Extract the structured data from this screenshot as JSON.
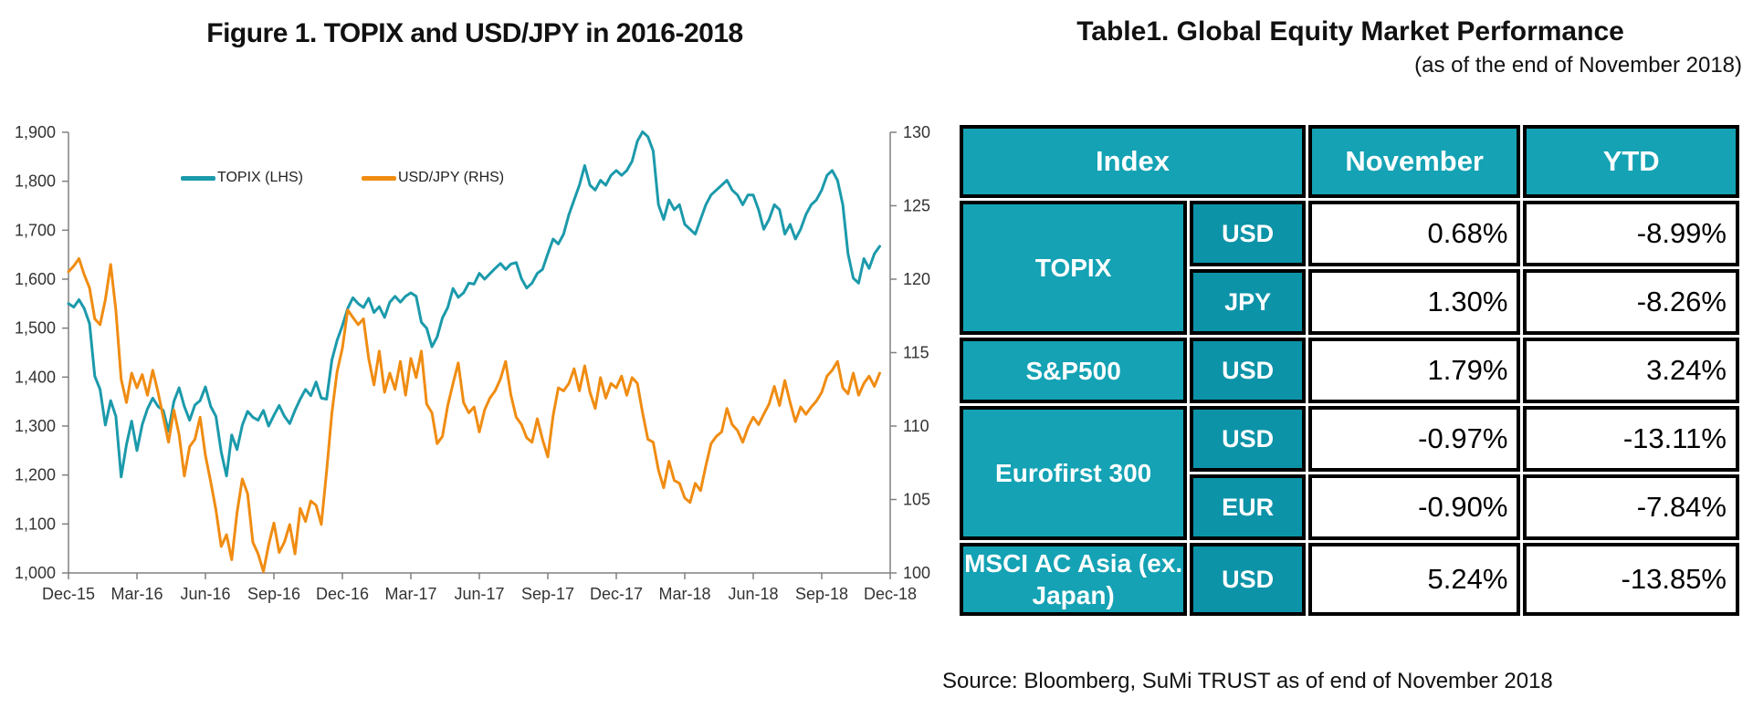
{
  "figure": {
    "title": "Figure 1. TOPIX and USD/JPY in 2016-2018"
  },
  "chart_data": {
    "type": "line",
    "title": "Figure 1. TOPIX and USD/JPY in 2016-2018",
    "grid": false,
    "legend_position": "top-center-inside",
    "x_unit": "weeks since start of Dec-2015",
    "x_tick_labels": [
      "Dec-15",
      "Mar-16",
      "Jun-16",
      "Sep-16",
      "Dec-16",
      "Mar-17",
      "Jun-17",
      "Sep-17",
      "Dec-17",
      "Mar-18",
      "Jun-18",
      "Sep-18",
      "Dec-18"
    ],
    "y_left": {
      "axis_for": "TOPIX",
      "min": 1000,
      "max": 1900,
      "ticks": [
        1000,
        1100,
        1200,
        1300,
        1400,
        1500,
        1600,
        1700,
        1800,
        1900
      ],
      "tick_labels": [
        "1,000",
        "1,100",
        "1,200",
        "1,300",
        "1,400",
        "1,500",
        "1,600",
        "1,700",
        "1,800",
        "1,900"
      ]
    },
    "y_right": {
      "axis_for": "USD/JPY",
      "min": 100,
      "max": 130,
      "ticks": [
        100,
        105,
        110,
        115,
        120,
        125,
        130
      ],
      "tick_labels": [
        "100",
        "105",
        "110",
        "115",
        "120",
        "125",
        "130"
      ]
    },
    "series": [
      {
        "name": "TOPIX (LHS)",
        "axis": "left",
        "color": "#1b9aab",
        "weekly_values": [
          1550,
          1543,
          1558,
          1540,
          1509,
          1402,
          1375,
          1302,
          1352,
          1320,
          1196,
          1262,
          1310,
          1250,
          1303,
          1335,
          1357,
          1340,
          1332,
          1289,
          1350,
          1378,
          1340,
          1312,
          1343,
          1352,
          1380,
          1340,
          1320,
          1247,
          1198,
          1282,
          1252,
          1302,
          1330,
          1318,
          1312,
          1332,
          1300,
          1322,
          1342,
          1320,
          1305,
          1332,
          1355,
          1375,
          1362,
          1390,
          1357,
          1355,
          1435,
          1475,
          1505,
          1540,
          1562,
          1550,
          1542,
          1561,
          1532,
          1544,
          1522,
          1553,
          1565,
          1553,
          1565,
          1572,
          1565,
          1512,
          1500,
          1462,
          1482,
          1521,
          1542,
          1581,
          1563,
          1572,
          1592,
          1590,
          1612,
          1600,
          1611,
          1622,
          1632,
          1620,
          1631,
          1634,
          1601,
          1582,
          1592,
          1612,
          1620,
          1652,
          1682,
          1672,
          1692,
          1732,
          1762,
          1792,
          1832,
          1792,
          1782,
          1802,
          1792,
          1812,
          1822,
          1812,
          1822,
          1841,
          1882,
          1901,
          1891,
          1862,
          1752,
          1722,
          1762,
          1742,
          1752,
          1712,
          1702,
          1692,
          1722,
          1752,
          1772,
          1782,
          1792,
          1802,
          1782,
          1772,
          1752,
          1772,
          1772,
          1742,
          1702,
          1722,
          1752,
          1742,
          1692,
          1712,
          1682,
          1702,
          1732,
          1752,
          1762,
          1782,
          1812,
          1822,
          1802,
          1752,
          1652,
          1602,
          1592,
          1642,
          1622,
          1652,
          1667
        ]
      },
      {
        "name": "USD/JPY (RHS)",
        "axis": "right",
        "color": "#f08c12",
        "weekly_values": [
          120.5,
          120.9,
          121.4,
          120.3,
          119.4,
          117.3,
          116.9,
          118.6,
          121.0,
          117.9,
          113.2,
          111.6,
          113.6,
          112.6,
          113.5,
          112.1,
          113.8,
          112.3,
          110.6,
          108.9,
          111.1,
          109.4,
          106.6,
          108.6,
          109.1,
          110.6,
          108.0,
          106.2,
          104.3,
          101.8,
          102.6,
          100.9,
          104.1,
          106.4,
          105.4,
          102.1,
          101.3,
          100.1,
          101.9,
          103.4,
          101.4,
          102.1,
          103.3,
          101.3,
          104.4,
          103.5,
          104.9,
          104.6,
          103.3,
          106.9,
          110.9,
          113.7,
          115.3,
          117.9,
          117.4,
          116.9,
          117.3,
          114.6,
          112.8,
          115.1,
          112.3,
          113.6,
          112.5,
          114.4,
          112.1,
          114.6,
          113.3,
          115.1,
          111.5,
          110.9,
          108.8,
          109.3,
          111.4,
          112.9,
          114.3,
          111.6,
          110.9,
          111.3,
          109.6,
          111.1,
          111.9,
          112.4,
          113.2,
          114.4,
          112.1,
          110.6,
          110.1,
          109.2,
          108.9,
          110.5,
          109.1,
          107.9,
          110.7,
          112.6,
          112.4,
          112.9,
          113.9,
          112.4,
          114.1,
          112.3,
          111.2,
          113.3,
          111.9,
          112.9,
          112.6,
          113.4,
          112.1,
          113.3,
          112.9,
          110.9,
          109.1,
          108.9,
          107.0,
          105.8,
          107.6,
          106.3,
          106.1,
          105.1,
          104.8,
          106.1,
          105.6,
          107.3,
          108.8,
          109.3,
          109.6,
          111.2,
          110.1,
          109.7,
          108.9,
          109.9,
          110.6,
          110.1,
          110.8,
          111.5,
          112.7,
          111.4,
          113.1,
          111.6,
          110.3,
          111.3,
          110.8,
          111.3,
          111.7,
          112.3,
          113.4,
          113.8,
          114.4,
          112.6,
          112.2,
          113.6,
          112.1,
          112.9,
          113.4,
          112.7,
          113.6
        ]
      }
    ]
  },
  "table": {
    "title": "Table1. Global Equity Market Performance",
    "subtitle": "(as of the end of November 2018)",
    "header": {
      "index": "Index",
      "november": "November",
      "ytd": "YTD"
    },
    "rows": [
      {
        "index": "TOPIX",
        "currency": "USD",
        "november": "0.68%",
        "ytd": "-8.99%"
      },
      {
        "index": "",
        "currency": "JPY",
        "november": "1.30%",
        "ytd": "-8.26%"
      },
      {
        "index": "S&P500",
        "currency": "USD",
        "november": "1.79%",
        "ytd": "3.24%"
      },
      {
        "index": "Eurofirst 300",
        "currency": "USD",
        "november": "-0.97%",
        "ytd": "-13.11%"
      },
      {
        "index": "",
        "currency": "EUR",
        "november": "-0.90%",
        "ytd": "-7.84%"
      },
      {
        "index": "MSCI AC Asia (ex. Japan)",
        "currency": "USD",
        "november": "5.24%",
        "ytd": "-13.85%"
      }
    ],
    "source": "Source: Bloomberg, SuMi TRUST as of end of November 2018"
  },
  "colors": {
    "topix_line": "#1b9aab",
    "usdjpy_line": "#f08c12",
    "table_teal": "#14a2b4",
    "table_currency_teal": "#0c93a8",
    "table_border": "#000000",
    "axis": "#808080",
    "axis_text": "#333333"
  }
}
